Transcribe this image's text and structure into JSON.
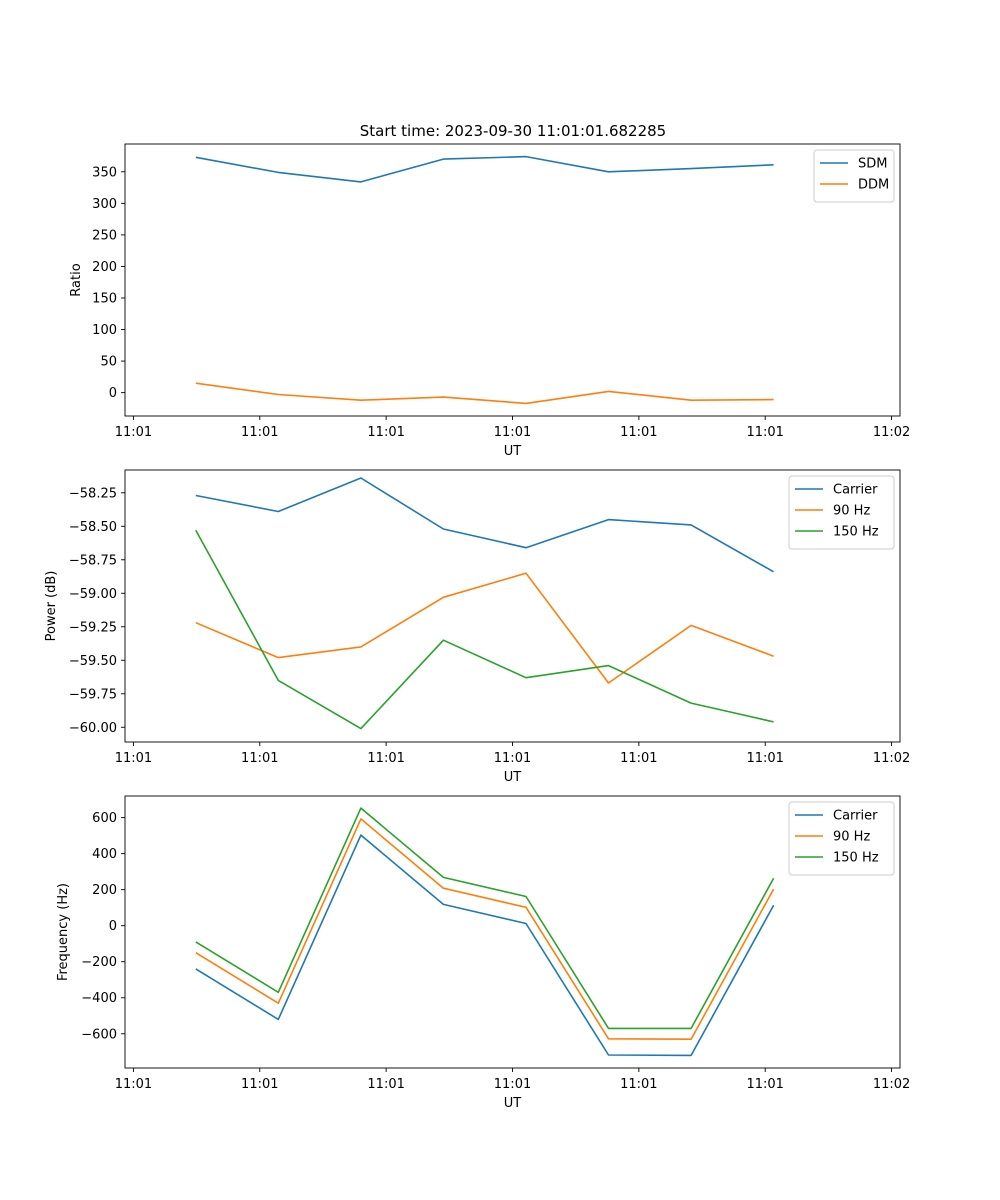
{
  "figure": {
    "title": "Start time: 2023-09-30 11:01:01.682285"
  },
  "colors": {
    "c0": "#1f77b4",
    "c1": "#ff7f0e",
    "c2": "#2ca02c"
  },
  "chart_data": [
    {
      "type": "line",
      "title": "Start time: 2023-09-30 11:01:01.682285",
      "xlabel": "UT",
      "ylabel": "Ratio",
      "xlim": [
        -0.1,
        9.1
      ],
      "ylim": [
        -37,
        394
      ],
      "xticks": [
        0,
        1.5,
        3,
        4.5,
        6,
        7.5,
        9
      ],
      "xtick_labels": [
        "11:01",
        "11:01",
        "11:01",
        "11:01",
        "11:01",
        "11:01",
        "11:02"
      ],
      "yticks": [
        0,
        50,
        100,
        150,
        200,
        250,
        300,
        350
      ],
      "ytick_labels": [
        "0",
        "50",
        "100",
        "150",
        "200",
        "250",
        "300",
        "350"
      ],
      "grid": false,
      "legend_position": "top-right",
      "x": [
        0.74,
        1.72,
        2.7,
        3.68,
        4.66,
        5.64,
        6.62,
        7.6
      ],
      "series": [
        {
          "name": "SDM",
          "color": "#1f77b4",
          "values": [
            373,
            349,
            334,
            370,
            374,
            350,
            355,
            361
          ]
        },
        {
          "name": "DDM",
          "color": "#ff7f0e",
          "values": [
            15,
            -3,
            -12,
            -7,
            -17,
            2,
            -12,
            -11
          ]
        }
      ]
    },
    {
      "type": "line",
      "xlabel": "UT",
      "ylabel": "Power (dB)",
      "xlim": [
        -0.1,
        9.1
      ],
      "ylim": [
        -60.11,
        -58.08
      ],
      "xticks": [
        0,
        1.5,
        3,
        4.5,
        6,
        7.5,
        9
      ],
      "xtick_labels": [
        "11:01",
        "11:01",
        "11:01",
        "11:01",
        "11:01",
        "11:01",
        "11:02"
      ],
      "yticks": [
        -60.0,
        -59.75,
        -59.5,
        -59.25,
        -59.0,
        -58.75,
        -58.5,
        -58.25
      ],
      "ytick_labels": [
        "−60.00",
        "−59.75",
        "−59.50",
        "−59.25",
        "−59.00",
        "−58.75",
        "−58.50",
        "−58.25"
      ],
      "grid": false,
      "legend_position": "top-right",
      "x": [
        0.74,
        1.72,
        2.7,
        3.68,
        4.66,
        5.64,
        6.62,
        7.6
      ],
      "series": [
        {
          "name": "Carrier",
          "color": "#1f77b4",
          "values": [
            -58.27,
            -58.39,
            -58.14,
            -58.52,
            -58.66,
            -58.45,
            -58.49,
            -58.84
          ]
        },
        {
          "name": "90 Hz",
          "color": "#ff7f0e",
          "values": [
            -59.22,
            -59.48,
            -59.4,
            -59.03,
            -58.85,
            -59.67,
            -59.24,
            -59.47
          ]
        },
        {
          "name": "150 Hz",
          "color": "#2ca02c",
          "values": [
            -58.53,
            -59.65,
            -60.01,
            -59.35,
            -59.63,
            -59.54,
            -59.82,
            -59.96
          ]
        }
      ]
    },
    {
      "type": "line",
      "xlabel": "UT",
      "ylabel": "Frequency (Hz)",
      "xlim": [
        -0.1,
        9.1
      ],
      "ylim": [
        -790,
        720
      ],
      "xticks": [
        0,
        1.5,
        3,
        4.5,
        6,
        7.5,
        9
      ],
      "xtick_labels": [
        "11:01",
        "11:01",
        "11:01",
        "11:01",
        "11:01",
        "11:01",
        "11:02"
      ],
      "yticks": [
        -600,
        -400,
        -200,
        0,
        200,
        400,
        600
      ],
      "ytick_labels": [
        "−600",
        "−400",
        "−200",
        "0",
        "200",
        "400",
        "600"
      ],
      "grid": false,
      "legend_position": "top-right",
      "x": [
        0.74,
        1.72,
        2.7,
        3.68,
        4.66,
        5.64,
        6.62,
        7.6
      ],
      "series": [
        {
          "name": "Carrier",
          "color": "#1f77b4",
          "values": [
            -240,
            -520,
            503,
            118,
            12,
            -718,
            -720,
            113
          ]
        },
        {
          "name": "90 Hz",
          "color": "#ff7f0e",
          "values": [
            -150,
            -430,
            593,
            208,
            102,
            -628,
            -630,
            203
          ]
        },
        {
          "name": "150 Hz",
          "color": "#2ca02c",
          "values": [
            -90,
            -370,
            653,
            268,
            162,
            -570,
            -570,
            263
          ]
        }
      ]
    }
  ]
}
